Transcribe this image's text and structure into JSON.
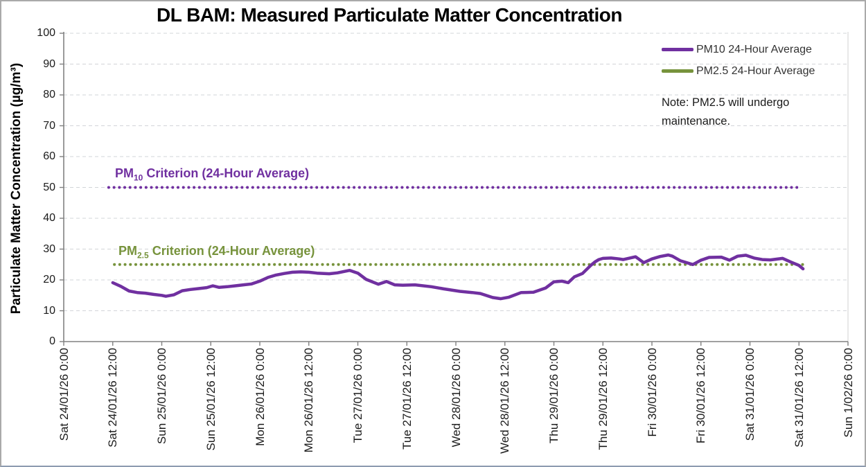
{
  "chart": {
    "title": "DL BAM: Measured Particulate Matter Concentration",
    "ylabel": "Particulate Matter Concentration (µg/m³)"
  },
  "legend": {
    "items": [
      {
        "label": "PM10 24-Hour Average",
        "color": "#7030A0"
      },
      {
        "label": "PM2.5 24-Hour Average",
        "color": "#77933C"
      }
    ]
  },
  "note": {
    "lines": [
      "Note: PM2.5 will undergo",
      "maintenance."
    ]
  },
  "criteria": [
    {
      "prefix": "PM",
      "sub": "10",
      "suffix": " Criterion (24-Hour Average)",
      "value": 50,
      "color": "#7030A0",
      "t_start": 11.0,
      "t_end": 180.6
    },
    {
      "prefix": "PM",
      "sub": "2.5",
      "suffix": " Criterion (24-Hour Average)",
      "value": 25,
      "color": "#77933C",
      "t_start": 12.4,
      "t_end": 181.5
    }
  ],
  "chart_data": {
    "type": "line",
    "title": "DL BAM: Measured Particulate Matter Concentration",
    "xlabel": "",
    "ylabel": "Particulate Matter Concentration (µg/m³)",
    "ylim": [
      0,
      100
    ],
    "y_tick_labels": [
      0,
      10,
      20,
      30,
      40,
      50,
      60,
      70,
      80,
      90,
      100
    ],
    "x_range_hours": [
      0,
      192
    ],
    "x_tick_step_hours": 12,
    "x_tick_labels": [
      "Sat 24/01/26 0:00",
      "Sat 24/01/26 12:00",
      "Sun 25/01/26 0:00",
      "Sun 25/01/26 12:00",
      "Mon 26/01/26 0:00",
      "Mon 26/01/26 12:00",
      "Tue 27/01/26 0:00",
      "Tue 27/01/26 12:00",
      "Wed 28/01/26 0:00",
      "Wed 28/01/26 12:00",
      "Thu 29/01/26 0:00",
      "Thu 29/01/26 12:00",
      "Fri 30/01/26 0:00",
      "Fri 30/01/26 12:00",
      "Sat 31/01/26 0:00",
      "Sat 31/01/26 12:00",
      "Sun 1/02/26 0:00"
    ],
    "grid": "horizontal-dashed",
    "legend_position": "top-right",
    "reference_lines": [
      {
        "name": "PM10 Criterion (24-Hour Average)",
        "value": 50,
        "style": "dotted",
        "color": "#7030A0"
      },
      {
        "name": "PM2.5 Criterion (24-Hour Average)",
        "value": 25,
        "style": "dotted",
        "color": "#77933C"
      }
    ],
    "series": [
      {
        "name": "PM10 24-Hour Average",
        "color": "#7030A0",
        "x_unit": "hours since Sat 24/01/26 0:00",
        "points": [
          [
            12,
            19.1
          ],
          [
            14,
            17.9
          ],
          [
            16,
            16.4
          ],
          [
            18,
            15.9
          ],
          [
            20,
            15.7
          ],
          [
            22,
            15.3
          ],
          [
            24,
            15.0
          ],
          [
            25,
            14.7
          ],
          [
            27,
            15.2
          ],
          [
            29,
            16.5
          ],
          [
            31,
            16.9
          ],
          [
            33,
            17.2
          ],
          [
            35,
            17.5
          ],
          [
            36.5,
            18.1
          ],
          [
            38,
            17.6
          ],
          [
            40,
            17.8
          ],
          [
            42,
            18.1
          ],
          [
            44,
            18.4
          ],
          [
            46,
            18.7
          ],
          [
            48,
            19.6
          ],
          [
            50,
            20.8
          ],
          [
            52,
            21.6
          ],
          [
            54,
            22.1
          ],
          [
            56,
            22.5
          ],
          [
            58,
            22.6
          ],
          [
            60,
            22.5
          ],
          [
            62,
            22.2
          ],
          [
            65,
            22.0
          ],
          [
            67,
            22.3
          ],
          [
            70,
            23.1
          ],
          [
            72,
            22.2
          ],
          [
            74,
            20.2
          ],
          [
            77,
            18.6
          ],
          [
            79,
            19.5
          ],
          [
            81,
            18.4
          ],
          [
            83,
            18.3
          ],
          [
            86,
            18.4
          ],
          [
            90,
            17.8
          ],
          [
            93,
            17.1
          ],
          [
            97,
            16.3
          ],
          [
            100,
            15.9
          ],
          [
            102,
            15.6
          ],
          [
            105,
            14.3
          ],
          [
            107,
            13.9
          ],
          [
            109,
            14.4
          ],
          [
            112,
            15.9
          ],
          [
            115,
            16.0
          ],
          [
            118,
            17.4
          ],
          [
            120,
            19.4
          ],
          [
            122,
            19.6
          ],
          [
            123.5,
            19.1
          ],
          [
            125,
            21.0
          ],
          [
            127,
            22.1
          ],
          [
            129,
            24.7
          ],
          [
            130,
            25.8
          ],
          [
            131,
            26.6
          ],
          [
            132,
            27.0
          ],
          [
            134,
            27.1
          ],
          [
            136,
            26.8
          ],
          [
            137,
            26.6
          ],
          [
            140,
            27.5
          ],
          [
            142,
            25.6
          ],
          [
            144,
            26.8
          ],
          [
            146,
            27.6
          ],
          [
            148,
            28.1
          ],
          [
            149,
            27.7
          ],
          [
            151,
            26.2
          ],
          [
            154,
            25.0
          ],
          [
            156,
            26.4
          ],
          [
            158,
            27.3
          ],
          [
            161,
            27.4
          ],
          [
            163,
            26.4
          ],
          [
            165,
            27.7
          ],
          [
            167,
            28.0
          ],
          [
            169,
            27.1
          ],
          [
            171,
            26.6
          ],
          [
            173,
            26.5
          ],
          [
            176,
            27.0
          ],
          [
            178,
            25.8
          ],
          [
            180,
            24.7
          ],
          [
            181,
            23.6
          ]
        ]
      }
    ],
    "colors": {
      "grid": "#D2D4D8",
      "axis": "#808080",
      "plot_right_border": "#D9D9D9",
      "text": "#1A1A1A"
    }
  }
}
